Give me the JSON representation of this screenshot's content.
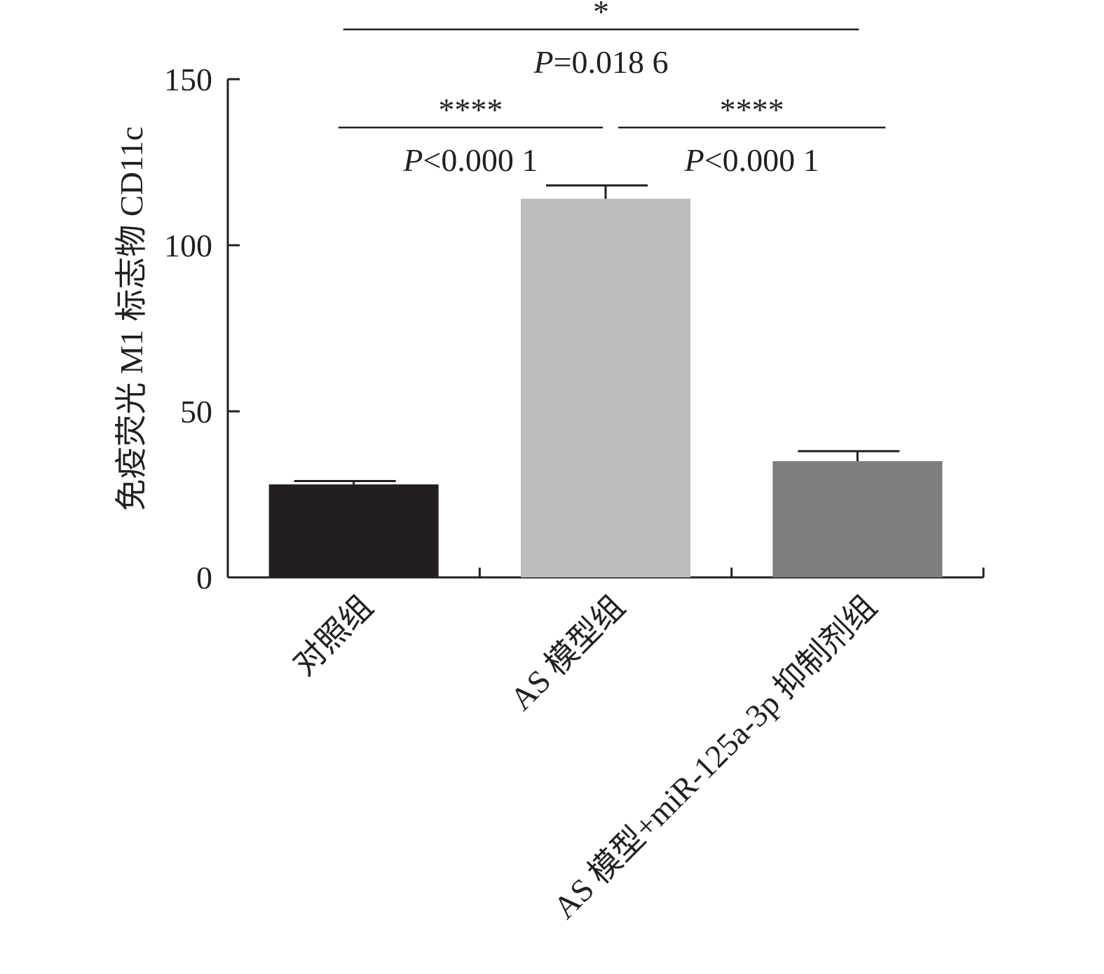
{
  "chart_data": {
    "type": "bar",
    "title": "",
    "xlabel": "",
    "ylabel": "免疫荧光 M1 标志物 CD11c",
    "ylim": [
      0,
      150
    ],
    "yticks": [
      0,
      50,
      100,
      150
    ],
    "ytick_labels": [
      "0",
      "50",
      "100",
      "150"
    ],
    "categories": [
      "对照组",
      "AS 模型组",
      "AS 模型+miR-125a-3p 抑制剂组"
    ],
    "values": [
      28,
      114,
      35
    ],
    "errors": [
      1,
      4,
      3
    ],
    "colors": [
      "#231f20",
      "#bcbcbc",
      "#7e7c7d"
    ],
    "grid": false,
    "legend": "none",
    "comparisons": [
      {
        "from": 0,
        "to": 1,
        "stars": "****",
        "p_label": "<0.000 1"
      },
      {
        "from": 1,
        "to": 2,
        "stars": "****",
        "p_label": "<0.000 1"
      },
      {
        "from": 0,
        "to": 2,
        "stars": "*",
        "p_label": "=0.018 6"
      }
    ],
    "p_symbol": "P"
  }
}
